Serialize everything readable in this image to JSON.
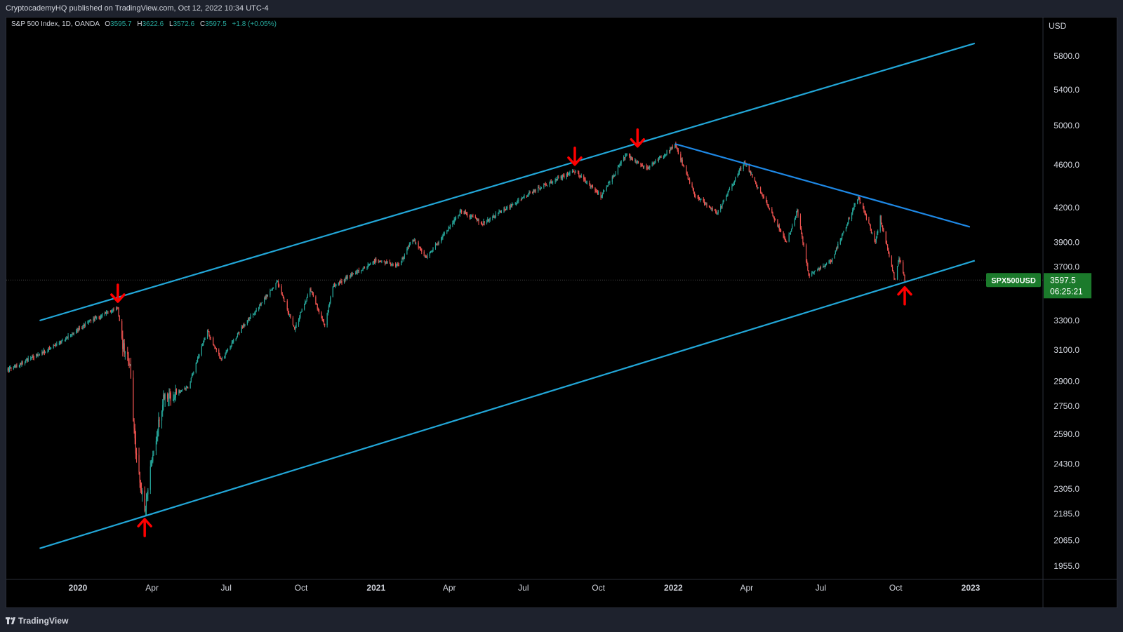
{
  "header": {
    "published_text": "CryptocademyHQ published on TradingView.com, Oct 12, 2022 10:34 UTC-4"
  },
  "legend": {
    "symbol_line": "S&P 500 Index, 1D, OANDA",
    "o_label": "O",
    "o_value": "3595.7",
    "h_label": "H",
    "h_value": "3622.6",
    "l_label": "L",
    "l_value": "3572.6",
    "c_label": "C",
    "c_value": "3597.5",
    "change": "+1.8 (+0.05%)"
  },
  "footer": {
    "brand": "TradingView"
  },
  "colors": {
    "background": "#000000",
    "up": "#26a69a",
    "down": "#ef5350",
    "channel_line": "#22a7d8",
    "resistance_line": "#1e88e5",
    "arrow": "#ff0000",
    "price_tag": "#1b7a2b"
  },
  "chart_data": {
    "type": "candlestick",
    "symbol": "SPX500USD",
    "interval": "1D",
    "currency": "USD",
    "scale": "log",
    "ylim": [
      1900,
      6200
    ],
    "y_ticks": [
      {
        "value": 5800,
        "label": "5800.0"
      },
      {
        "value": 5400,
        "label": "5400.0"
      },
      {
        "value": 5000,
        "label": "5000.0"
      },
      {
        "value": 4600,
        "label": "4600.0"
      },
      {
        "value": 4200,
        "label": "4200.0"
      },
      {
        "value": 3900,
        "label": "3900.0"
      },
      {
        "value": 3700,
        "label": "3700.0"
      },
      {
        "value": 3300,
        "label": "3300.0"
      },
      {
        "value": 3100,
        "label": "3100.0"
      },
      {
        "value": 2900,
        "label": "2900.0"
      },
      {
        "value": 2750,
        "label": "2750.0"
      },
      {
        "value": 2590,
        "label": "2590.0"
      },
      {
        "value": 2430,
        "label": "2430.0"
      },
      {
        "value": 2305,
        "label": "2305.0"
      },
      {
        "value": 2185,
        "label": "2185.0"
      },
      {
        "value": 2065,
        "label": "2065.0"
      },
      {
        "value": 1955,
        "label": "1955.0"
      }
    ],
    "x_ticks": [
      {
        "label": "2020",
        "date": "2020-01-01",
        "bold": true
      },
      {
        "label": "Apr",
        "date": "2020-04-01",
        "bold": false
      },
      {
        "label": "Jul",
        "date": "2020-07-01",
        "bold": false
      },
      {
        "label": "Oct",
        "date": "2020-10-01",
        "bold": false
      },
      {
        "label": "2021",
        "date": "2021-01-01",
        "bold": true
      },
      {
        "label": "Apr",
        "date": "2021-04-01",
        "bold": false
      },
      {
        "label": "Jul",
        "date": "2021-07-01",
        "bold": false
      },
      {
        "label": "Oct",
        "date": "2021-10-01",
        "bold": false
      },
      {
        "label": "2022",
        "date": "2022-01-01",
        "bold": true
      },
      {
        "label": "Apr",
        "date": "2022-04-01",
        "bold": false
      },
      {
        "label": "Jul",
        "date": "2022-07-01",
        "bold": false
      },
      {
        "label": "Oct",
        "date": "2022-10-01",
        "bold": false
      },
      {
        "label": "2023",
        "date": "2023-01-01",
        "bold": true
      }
    ],
    "price_path": [
      {
        "date": "2019-09-01",
        "value": 2900
      },
      {
        "date": "2019-10-15",
        "value": 2990
      },
      {
        "date": "2019-12-01",
        "value": 3120
      },
      {
        "date": "2020-01-15",
        "value": 3290
      },
      {
        "date": "2020-02-19",
        "value": 3390
      },
      {
        "date": "2020-02-25",
        "value": 3130
      },
      {
        "date": "2020-03-05",
        "value": 3000
      },
      {
        "date": "2020-03-12",
        "value": 2480
      },
      {
        "date": "2020-03-23",
        "value": 2200
      },
      {
        "date": "2020-04-01",
        "value": 2470
      },
      {
        "date": "2020-04-15",
        "value": 2790
      },
      {
        "date": "2020-05-15",
        "value": 2860
      },
      {
        "date": "2020-06-08",
        "value": 3230
      },
      {
        "date": "2020-06-25",
        "value": 3030
      },
      {
        "date": "2020-07-20",
        "value": 3250
      },
      {
        "date": "2020-09-02",
        "value": 3580
      },
      {
        "date": "2020-09-23",
        "value": 3240
      },
      {
        "date": "2020-10-12",
        "value": 3530
      },
      {
        "date": "2020-10-30",
        "value": 3270
      },
      {
        "date": "2020-11-09",
        "value": 3550
      },
      {
        "date": "2020-12-31",
        "value": 3750
      },
      {
        "date": "2021-01-29",
        "value": 3710
      },
      {
        "date": "2021-02-15",
        "value": 3930
      },
      {
        "date": "2021-03-04",
        "value": 3770
      },
      {
        "date": "2021-04-15",
        "value": 4170
      },
      {
        "date": "2021-05-12",
        "value": 4060
      },
      {
        "date": "2021-07-15",
        "value": 4360
      },
      {
        "date": "2021-09-02",
        "value": 4540
      },
      {
        "date": "2021-10-04",
        "value": 4300
      },
      {
        "date": "2021-11-04",
        "value": 4700
      },
      {
        "date": "2021-11-30",
        "value": 4560
      },
      {
        "date": "2022-01-03",
        "value": 4800
      },
      {
        "date": "2022-01-27",
        "value": 4320
      },
      {
        "date": "2022-02-24",
        "value": 4150
      },
      {
        "date": "2022-03-29",
        "value": 4630
      },
      {
        "date": "2022-05-20",
        "value": 3900
      },
      {
        "date": "2022-06-02",
        "value": 4180
      },
      {
        "date": "2022-06-16",
        "value": 3640
      },
      {
        "date": "2022-07-14",
        "value": 3750
      },
      {
        "date": "2022-08-16",
        "value": 4300
      },
      {
        "date": "2022-09-06",
        "value": 3900
      },
      {
        "date": "2022-09-12",
        "value": 4110
      },
      {
        "date": "2022-09-30",
        "value": 3590
      },
      {
        "date": "2022-10-05",
        "value": 3780
      },
      {
        "date": "2022-10-12",
        "value": 3597.5
      }
    ],
    "trendlines": [
      {
        "name": "channel-upper",
        "from": {
          "date": "2019-11-15",
          "value": 3300
        },
        "to": {
          "date": "2023-01-06",
          "value": 5960
        }
      },
      {
        "name": "channel-lower",
        "from": {
          "date": "2019-11-15",
          "value": 2030
        },
        "to": {
          "date": "2023-01-06",
          "value": 3750
        }
      },
      {
        "name": "resistance",
        "from": {
          "date": "2022-01-03",
          "value": 4810
        },
        "to": {
          "date": "2022-12-31",
          "value": 4030
        }
      }
    ],
    "markers": [
      {
        "name": "top-2020-02",
        "direction": "down",
        "date": "2020-02-19",
        "value": 3390
      },
      {
        "name": "bottom-2020-03",
        "direction": "up",
        "date": "2020-03-23",
        "value": 2190
      },
      {
        "name": "top-2021-09",
        "direction": "down",
        "date": "2021-09-02",
        "value": 4540
      },
      {
        "name": "top-2021-11",
        "direction": "down",
        "date": "2021-11-18",
        "value": 4720
      },
      {
        "name": "bottom-2022-10",
        "direction": "up",
        "date": "2022-10-12",
        "value": 3590
      }
    ],
    "last_price": {
      "value": 3597.5,
      "label": "3597.5",
      "symbol_label": "SPX500USD",
      "countdown": "06:25:21"
    },
    "currency_label": "USD"
  }
}
